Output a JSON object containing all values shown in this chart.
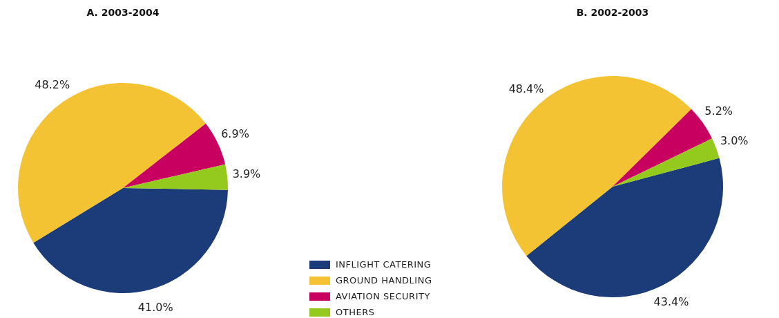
{
  "chart_data": [
    {
      "type": "pie",
      "title": "A. 2003-2004",
      "categories": [
        "INFLIGHT CATERING",
        "GROUND HANDLING",
        "AVIATION SECURITY",
        "OTHERS"
      ],
      "values": [
        41.0,
        48.2,
        6.9,
        3.9
      ],
      "colors": [
        "#1b3c78",
        "#f4c334",
        "#c8005f",
        "#94c91d"
      ],
      "value_labels": [
        "41.0%",
        "48.2%",
        "6.9%",
        "3.9%"
      ],
      "legend": "bottom right"
    },
    {
      "type": "pie",
      "title": "B. 2002-2003",
      "values": [
        43.4,
        48.4,
        5.2,
        3.0
      ],
      "colors": [
        "#1b3c78",
        "#f4c334",
        "#c8005f",
        "#94c91d"
      ],
      "value_labels": [
        "43.4%",
        "48.4%",
        "5.2%",
        "3.0%"
      ]
    }
  ]
}
